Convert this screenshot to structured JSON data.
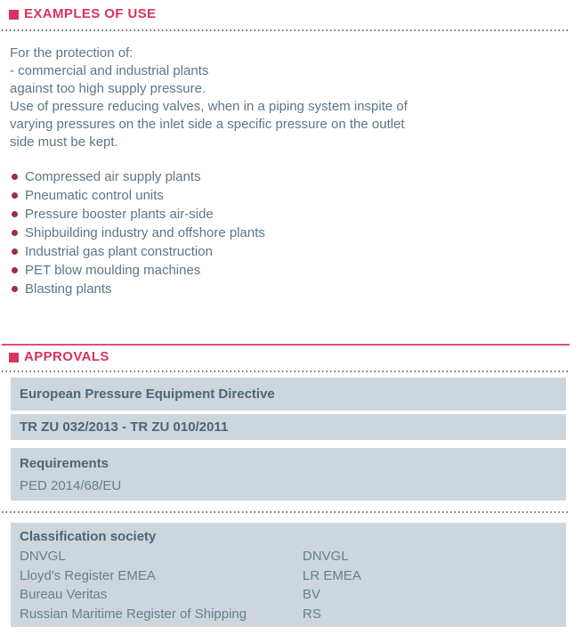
{
  "colors": {
    "accent_red": "#d9335b",
    "bullet_red": "#9e2f3c",
    "bar_background": "#ccd6dc",
    "body_text": "#5d7686",
    "bar_heading_text": "#4d6576",
    "bar_value_text": "#64808f"
  },
  "examples_of_use": {
    "title": "EXAMPLES OF USE",
    "intro_lines": [
      "For the protection of:",
      "- commercial and industrial plants",
      "against too high supply pressure.",
      "Use of pressure reducing valves, when in a piping system inspite of",
      "varying pressures on the inlet side a specific pressure on the outlet",
      "side must be kept."
    ],
    "bullets": [
      "Compressed air supply plants",
      "Pneumatic control units",
      "Pressure booster plants air-side",
      "Shipbuilding industry and offshore plants",
      "Industrial gas plant construction",
      "PET blow moulding machines",
      "Blasting plants"
    ]
  },
  "approvals": {
    "title": "APPROVALS",
    "directive_bar": "European Pressure Equipment Directive",
    "tr_zu_bar": "TR ZU 032/2013 - TR ZU 010/2011",
    "requirements": {
      "title": "Requirements",
      "value": "PED 2014/68/EU"
    },
    "classification": {
      "title": "Classification society",
      "rows": [
        {
          "name": "DNVGL",
          "code": "DNVGL"
        },
        {
          "name": "Lloyd's Register EMEA",
          "code": "LR EMEA"
        },
        {
          "name": "Bureau Veritas",
          "code": "BV"
        },
        {
          "name": "Russian Maritime Register of Shipping",
          "code": "RS"
        }
      ]
    }
  }
}
